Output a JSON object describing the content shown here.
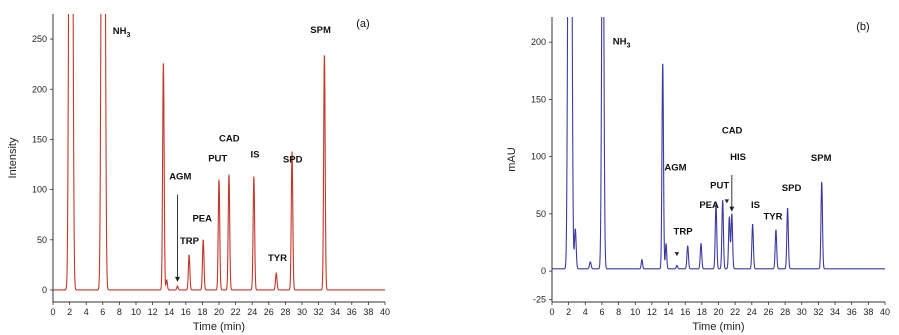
{
  "chart_data": [
    {
      "panel_label": "(a)",
      "type": "line",
      "xlabel": "Time (min)",
      "ylabel": "Intensity",
      "xlim": [
        0,
        40
      ],
      "ylim": [
        -12,
        275
      ],
      "xticks": [
        0,
        2,
        4,
        6,
        8,
        10,
        12,
        14,
        16,
        18,
        20,
        22,
        24,
        26,
        28,
        30,
        32,
        34,
        36,
        38,
        40
      ],
      "yticks": [
        0,
        50,
        100,
        150,
        200,
        250
      ],
      "grid": false,
      "line_color": "#c0392b",
      "baseline": 0,
      "peaks": [
        {
          "label": "",
          "rt": 2.0,
          "height": 500,
          "width": 0.12
        },
        {
          "label": "",
          "rt": 2.3,
          "height": 500,
          "width": 0.12
        },
        {
          "label": "",
          "rt": 5.9,
          "height": 500,
          "width": 0.12
        },
        {
          "label": "",
          "rt": 6.2,
          "height": 500,
          "width": 0.12
        },
        {
          "label": "",
          "rt": 13.3,
          "height": 227,
          "width": 0.09
        },
        {
          "label": "",
          "rt": 13.7,
          "height": 10,
          "width": 0.08
        },
        {
          "label": "AGM",
          "rt": 15.0,
          "height": 4,
          "width": 0.08
        },
        {
          "label": "TRP",
          "rt": 16.4,
          "height": 35,
          "width": 0.09
        },
        {
          "label": "PEA",
          "rt": 18.1,
          "height": 50,
          "width": 0.09
        },
        {
          "label": "PUT",
          "rt": 20.0,
          "height": 110,
          "width": 0.09
        },
        {
          "label": "CAD",
          "rt": 21.2,
          "height": 115,
          "width": 0.09
        },
        {
          "label": "IS",
          "rt": 24.2,
          "height": 113,
          "width": 0.09
        },
        {
          "label": "TYR",
          "rt": 26.9,
          "height": 17,
          "width": 0.09
        },
        {
          "label": "SPD",
          "rt": 28.8,
          "height": 138,
          "width": 0.09
        },
        {
          "label": "SPM",
          "rt": 32.7,
          "height": 235,
          "width": 0.09
        }
      ],
      "annotations": [
        {
          "text": "NH",
          "sub": "3",
          "x": 7.2,
          "y": 255
        },
        {
          "text": "AGM",
          "x": 14.0,
          "y": 110
        },
        {
          "text": "TRP",
          "x": 15.3,
          "y": 46
        },
        {
          "text": "PEA",
          "x": 16.8,
          "y": 68
        },
        {
          "text": "PUT",
          "x": 18.7,
          "y": 128
        },
        {
          "text": "CAD",
          "x": 20.0,
          "y": 148
        },
        {
          "text": "IS",
          "x": 23.8,
          "y": 132
        },
        {
          "text": "TYR",
          "x": 25.9,
          "y": 29
        },
        {
          "text": "SPD",
          "x": 27.7,
          "y": 127
        },
        {
          "text": "SPM",
          "x": 31.0,
          "y": 256
        }
      ],
      "arrows": [
        {
          "label": "AGM",
          "x": 15.0,
          "y_from": 95,
          "y_to": 8
        }
      ]
    },
    {
      "panel_label": "(b)",
      "type": "line",
      "xlabel": "Time (min)",
      "ylabel": "mAU",
      "xlim": [
        0,
        40
      ],
      "ylim": [
        -27,
        222
      ],
      "xticks": [
        0,
        2,
        4,
        6,
        8,
        10,
        12,
        14,
        16,
        18,
        20,
        22,
        24,
        26,
        28,
        30,
        32,
        34,
        36,
        38,
        40
      ],
      "yticks": [
        -25,
        0,
        50,
        100,
        150,
        200
      ],
      "grid": false,
      "line_color": "#3b3b9e",
      "baseline": 2,
      "peaks": [
        {
          "label": "",
          "rt": 2.0,
          "height": 400,
          "width": 0.12
        },
        {
          "label": "",
          "rt": 2.3,
          "height": 400,
          "width": 0.12
        },
        {
          "label": "",
          "rt": 2.8,
          "height": 35,
          "width": 0.1
        },
        {
          "label": "",
          "rt": 4.6,
          "height": 6,
          "width": 0.1
        },
        {
          "label": "",
          "rt": 6.1,
          "height": 400,
          "width": 0.12
        },
        {
          "label": "",
          "rt": 10.8,
          "height": 8,
          "width": 0.08
        },
        {
          "label": "",
          "rt": 13.3,
          "height": 180,
          "width": 0.09
        },
        {
          "label": "",
          "rt": 13.7,
          "height": 22,
          "width": 0.08
        },
        {
          "label": "",
          "rt": 15.0,
          "height": 3,
          "width": 0.08
        },
        {
          "label": "TRP",
          "rt": 16.3,
          "height": 20,
          "width": 0.09
        },
        {
          "label": "",
          "rt": 17.9,
          "height": 22,
          "width": 0.09
        },
        {
          "label": "PEA",
          "rt": 19.7,
          "height": 57,
          "width": 0.09
        },
        {
          "label": "PUT",
          "rt": 20.5,
          "height": 60,
          "width": 0.09
        },
        {
          "label": "CAD",
          "rt": 21.3,
          "height": 45,
          "width": 0.09
        },
        {
          "label": "HIS",
          "rt": 21.6,
          "height": 48,
          "width": 0.09
        },
        {
          "label": "IS",
          "rt": 24.1,
          "height": 39,
          "width": 0.09
        },
        {
          "label": "TYR",
          "rt": 26.9,
          "height": 34,
          "width": 0.09
        },
        {
          "label": "SPD",
          "rt": 28.3,
          "height": 53,
          "width": 0.09
        },
        {
          "label": "SPM",
          "rt": 32.4,
          "height": 76,
          "width": 0.09
        }
      ],
      "annotations": [
        {
          "text": "NH",
          "sub": "3",
          "x": 7.3,
          "y": 198
        },
        {
          "text": "AGM",
          "x": 13.5,
          "y": 88
        },
        {
          "text": "TRP",
          "x": 14.6,
          "y": 32
        },
        {
          "text": "PEA",
          "x": 17.7,
          "y": 55
        },
        {
          "text": "PUT",
          "x": 19.0,
          "y": 72
        },
        {
          "text": "CAD",
          "x": 20.4,
          "y": 120
        },
        {
          "text": "HIS",
          "x": 21.4,
          "y": 97
        },
        {
          "text": "IS",
          "x": 23.9,
          "y": 55
        },
        {
          "text": "TYR",
          "x": 25.4,
          "y": 45
        },
        {
          "text": "SPD",
          "x": 27.6,
          "y": 70
        },
        {
          "text": "SPM",
          "x": 31.1,
          "y": 96
        }
      ],
      "arrows": [
        {
          "label": "HIS",
          "x": 21.6,
          "y_from": 84,
          "y_to": 52
        }
      ],
      "markers": [
        {
          "x": 15.0,
          "y": 14
        },
        {
          "x": 21.0,
          "y": 60
        }
      ]
    }
  ]
}
